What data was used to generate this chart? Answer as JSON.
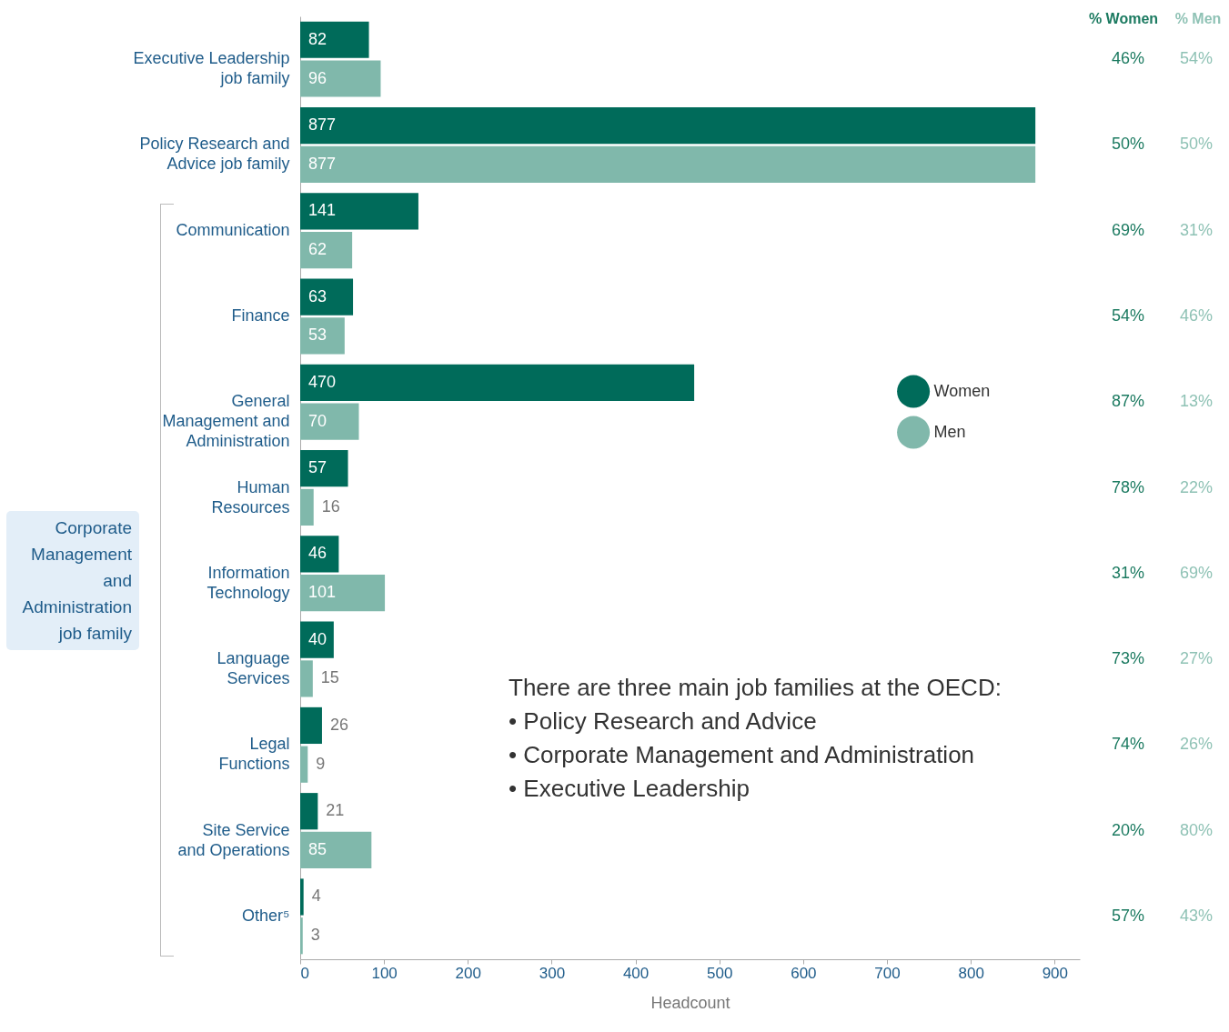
{
  "chart_data": {
    "type": "bar",
    "orientation": "horizontal",
    "xlabel": "Headcount",
    "categories": [
      "Executive Leadership job family",
      "Policy Research and Advice job family",
      "Communication",
      "Finance",
      "General Management and Administration",
      "Human Resources",
      "Information Technology",
      "Language Services",
      "Legal Functions",
      "Site Service and Operations",
      "Other⁵"
    ],
    "series": [
      {
        "name": "Women",
        "color": "#006b5a",
        "values": [
          82,
          877,
          141,
          63,
          470,
          57,
          46,
          40,
          26,
          21,
          4
        ]
      },
      {
        "name": "Men",
        "color": "#80b8ab",
        "values": [
          96,
          877,
          62,
          53,
          70,
          16,
          101,
          15,
          9,
          85,
          3
        ]
      }
    ],
    "xlim": [
      0,
      930
    ],
    "xticks": [
      0,
      100,
      200,
      300,
      400,
      500,
      600,
      700,
      800,
      900
    ],
    "data_labels": true,
    "legend": "right",
    "grid": false,
    "annotations": [
      "Corporate Management and Administration job family",
      "% Women",
      "% Men",
      "There are three main job families at the OECD:",
      "• Policy Research and Advice",
      "• Corporate Management and Administration",
      "• Executive Leadership",
      "46%",
      "54%",
      "50%",
      "50%",
      "69%",
      "31%",
      "54%",
      "46%",
      "87%",
      "13%",
      "78%",
      "22%",
      "31%",
      "69%",
      "73%",
      "27%",
      "74%",
      "26%",
      "20%",
      "80%",
      "57%",
      "43%"
    ]
  }
}
